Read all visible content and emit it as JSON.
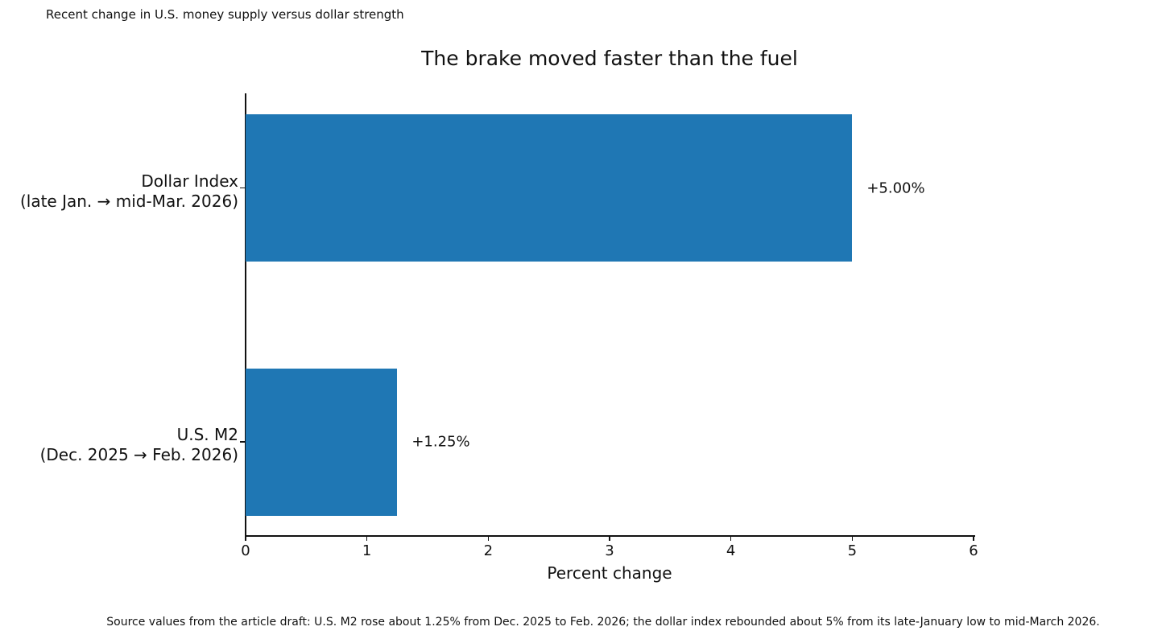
{
  "figure": {
    "note": "Recent change in U.S. money supply versus dollar strength",
    "caption": "Source values from the article draft: U.S. M2 rose about 1.25% from Dec. 2025 to Feb. 2026; the dollar index rebounded about 5% from its late-January low to mid-March 2026."
  },
  "chart_data": {
    "type": "bar",
    "orientation": "horizontal",
    "title": "The brake moved faster than the fuel",
    "xlabel": "Percent change",
    "categories": [
      {
        "name": "Dollar Index",
        "period": "(late Jan. → mid-Mar. 2026)"
      },
      {
        "name": "U.S. M2",
        "period": "(Dec. 2025 → Feb. 2026)"
      }
    ],
    "values": [
      5.0,
      1.25
    ],
    "bar_labels": [
      "+5.00%",
      "+1.25%"
    ],
    "xlim": [
      0,
      6
    ],
    "xticks": [
      0,
      1,
      2,
      3,
      4,
      5,
      6
    ],
    "bar_color": "#1f77b4",
    "text_color": "#111111",
    "grid": false,
    "legend": null
  }
}
